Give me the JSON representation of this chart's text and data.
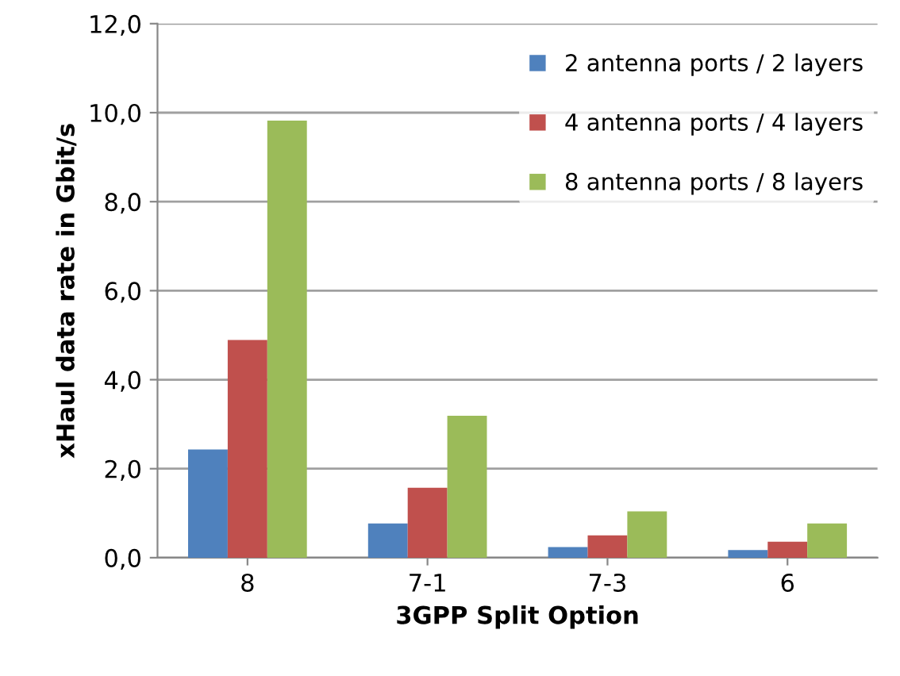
{
  "chart_data": {
    "type": "bar",
    "xlabel": "3GPP Split Option",
    "ylabel": "xHaul data rate in Gbit/s",
    "categories": [
      "8",
      "7-1",
      "7-3",
      "6"
    ],
    "series": [
      {
        "name": "2 antenna ports / 2 layers",
        "color": "#4f81bd",
        "values": [
          2.43,
          0.77,
          0.24,
          0.17
        ]
      },
      {
        "name": "4 antenna ports / 4 layers",
        "color": "#c0504d",
        "values": [
          4.89,
          1.57,
          0.5,
          0.36
        ]
      },
      {
        "name": "8 antenna ports / 8 layers",
        "color": "#9bbb59",
        "values": [
          9.82,
          3.19,
          1.04,
          0.77
        ]
      }
    ],
    "ylim": [
      0,
      12
    ],
    "yticks": [
      {
        "value": 0,
        "label": "0,0"
      },
      {
        "value": 2,
        "label": "2,0"
      },
      {
        "value": 4,
        "label": "4,0"
      },
      {
        "value": 6,
        "label": "6,0"
      },
      {
        "value": 8,
        "label": "8,0"
      },
      {
        "value": 10,
        "label": "10,0"
      },
      {
        "value": 12,
        "label": "12,0"
      }
    ],
    "grid": "y",
    "legend": "top right"
  }
}
